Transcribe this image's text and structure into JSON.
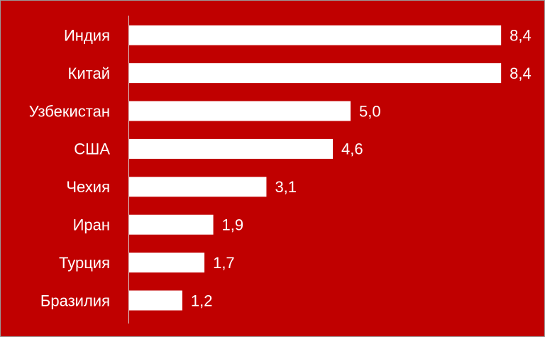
{
  "chart_data": {
    "type": "bar",
    "orientation": "horizontal",
    "categories": [
      "Индия",
      "Китай",
      "Узбекистан",
      "США",
      "Чехия",
      "Иран",
      "Турция",
      "Бразилия"
    ],
    "values": [
      8.4,
      8.4,
      5.0,
      4.6,
      3.1,
      1.9,
      1.7,
      1.2
    ],
    "value_labels": [
      "8,4",
      "8,4",
      "5,0",
      "4,6",
      "3,1",
      "1,9",
      "1,7",
      "1,2"
    ],
    "color": "#ffffff",
    "background": "#c00000"
  }
}
